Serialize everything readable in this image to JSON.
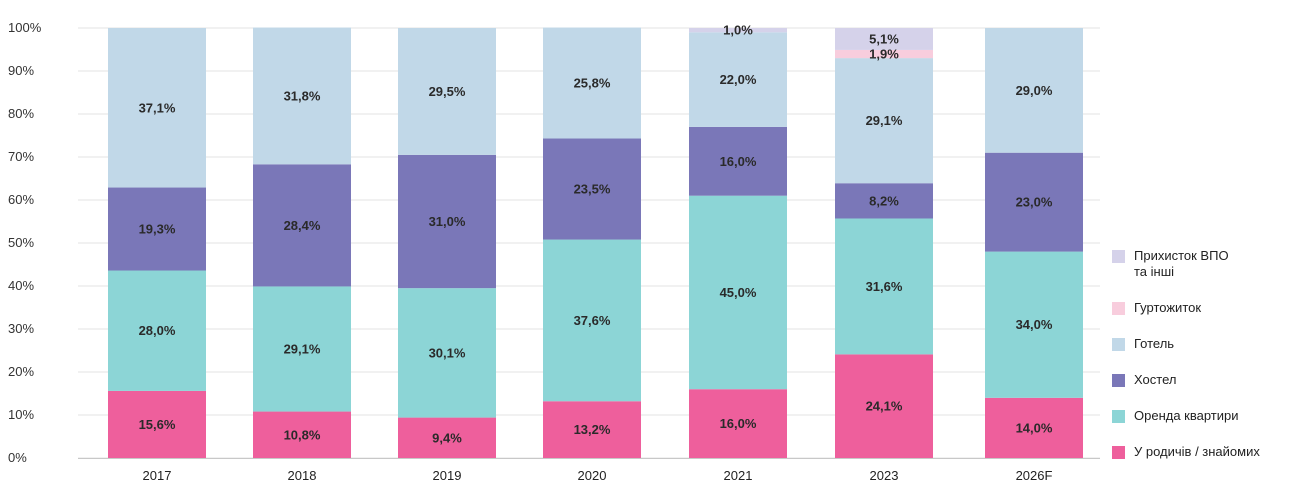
{
  "chart_data": {
    "type": "bar",
    "stacked": true,
    "categories": [
      "2017",
      "2018",
      "2019",
      "2020",
      "2021",
      "2023",
      "2026F"
    ],
    "series": [
      {
        "name": "У родичів / знайомих",
        "color": "#ee5f9c",
        "values": [
          15.6,
          10.8,
          9.4,
          13.2,
          16.0,
          24.1,
          14.0
        ],
        "labels": [
          "15,6%",
          "10,8%",
          "9,4%",
          "13,2%",
          "16,0%",
          "24,1%",
          "14,0%"
        ]
      },
      {
        "name": "Оренда квартири",
        "color": "#8cd5d6",
        "values": [
          28.0,
          29.1,
          30.1,
          37.6,
          45.0,
          31.6,
          34.0
        ],
        "labels": [
          "28,0%",
          "29,1%",
          "30,1%",
          "37,6%",
          "45,0%",
          "31,6%",
          "34,0%"
        ]
      },
      {
        "name": "Хостел",
        "color": "#7a77b8",
        "values": [
          19.3,
          28.4,
          31.0,
          23.5,
          16.0,
          8.2,
          23.0
        ],
        "labels": [
          "19,3%",
          "28,4%",
          "31,0%",
          "23,5%",
          "16,0%",
          "8,2%",
          "23,0%"
        ]
      },
      {
        "name": "Готель",
        "color": "#c1d8e8",
        "values": [
          37.1,
          31.8,
          29.5,
          25.8,
          22.0,
          29.1,
          29.0
        ],
        "labels": [
          "37,1%",
          "31,8%",
          "29,5%",
          "25,8%",
          "22,0%",
          "29,1%",
          "29,0%"
        ]
      },
      {
        "name": "Гуртожиток",
        "color": "#f8cddd",
        "values": [
          0,
          0,
          0,
          0,
          0,
          1.9,
          0
        ],
        "labels": [
          "",
          "",
          "",
          "",
          "",
          "1,9%",
          ""
        ]
      },
      {
        "name": "Прихисток ВПО та інші",
        "color": "#d5d2ea",
        "values": [
          0,
          0,
          0,
          0,
          1.0,
          5.1,
          0
        ],
        "labels": [
          "",
          "",
          "",
          "",
          "1,0%",
          "5,1%",
          ""
        ]
      }
    ],
    "yticks": [
      "0%",
      "10%",
      "20%",
      "30%",
      "40%",
      "50%",
      "60%",
      "70%",
      "80%",
      "90%",
      "100%"
    ],
    "ylim": [
      0,
      100
    ],
    "grid": true,
    "legend_position": "right",
    "legend": [
      {
        "lines": [
          "Прихисток ВПО",
          "та інші"
        ],
        "color": "#d5d2ea"
      },
      {
        "lines": [
          "Гуртожиток"
        ],
        "color": "#f8cddd"
      },
      {
        "lines": [
          "Готель"
        ],
        "color": "#c1d8e8"
      },
      {
        "lines": [
          "Хостел"
        ],
        "color": "#7a77b8"
      },
      {
        "lines": [
          "Оренда квартири"
        ],
        "color": "#8cd5d6"
      },
      {
        "lines": [
          "У родичів / знайомих"
        ],
        "color": "#ee5f9c"
      }
    ]
  }
}
